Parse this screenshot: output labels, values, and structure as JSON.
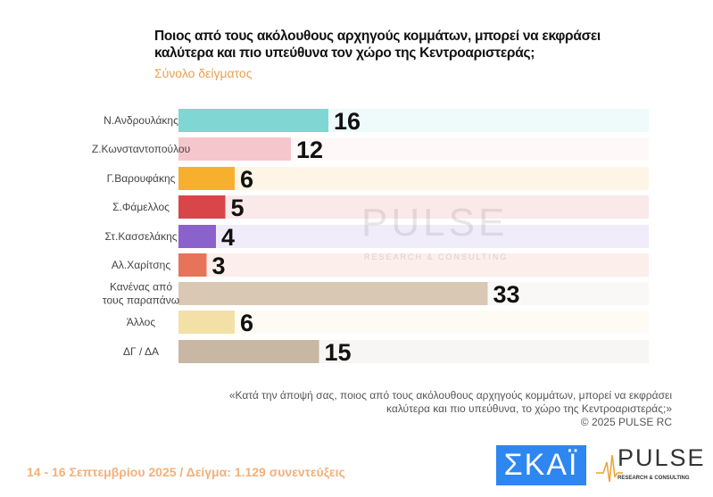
{
  "chart_data": {
    "type": "bar",
    "orientation": "horizontal",
    "title": "Ποιος από τους ακόλουθους αρχηγούς κομμάτων, μπορεί να εκφράσει καλύτερα και πιο υπεύθυνα τον χώρο της Κεντροαριστεράς;",
    "subtitle": "Σύνολο δείγματος",
    "categories": [
      "Ν.Ανδρουλάκης",
      "Ζ.Κωνσταντοπούλου",
      "Γ.Βαρουφάκης",
      "Σ.Φάμελλος",
      "Στ.Κασσελάκης",
      "Αλ.Χαρίτσης",
      "Κανένας από τους παραπάνω",
      "Άλλος",
      "ΔΓ / ΔΑ"
    ],
    "values": [
      16,
      12,
      6,
      5,
      4,
      3,
      33,
      6,
      15
    ],
    "colors": [
      "#7fd6d2",
      "#f6c6cd",
      "#f7b02e",
      "#d8464a",
      "#8b62cc",
      "#e6735a",
      "#d8c8b4",
      "#f3e0a6",
      "#c8b7a2"
    ],
    "xlim": [
      0,
      50
    ],
    "grid": false
  },
  "note": {
    "line1": "«Κατά την άποψή σας, ποιος από τους ακόλουθους αρχηγούς κομμάτων, μπορεί να εκφράσει",
    "line2": "καλύτερα και πιο υπεύθυνα, το χώρο της Κεντροαριστεράς;»",
    "copyright": "©  2025  PULSE RC"
  },
  "footer": "14 - 16 Σεπτεμβρίου 2025  /  Δείγμα:  1.129 συνεντεύξεις",
  "logos": {
    "skai": "ΣΚΑΪ",
    "pulse": "PULSE",
    "pulse_sub": "RESEARCH & CONSULTING"
  },
  "watermark": {
    "main": "PULSE",
    "sub": "RESEARCH & CONSULTING"
  }
}
